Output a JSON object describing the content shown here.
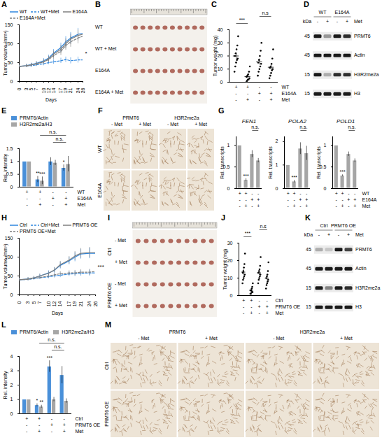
{
  "chart_data": [
    {
      "panel": "A",
      "type": "line",
      "x_label": "Days",
      "y_label": "Tumor volume (mm³)",
      "x": [
        0,
        3,
        5,
        7,
        10,
        12,
        14,
        17,
        19,
        21,
        24,
        26
      ],
      "xlim": [
        0,
        26
      ],
      "xticks": [
        0,
        3,
        5,
        7,
        10,
        12,
        14,
        17,
        19,
        21,
        24,
        26
      ],
      "ylim": [
        0,
        150
      ],
      "yticks": [
        0,
        50,
        100,
        150
      ],
      "legend": "top",
      "annotation": "*",
      "series": [
        {
          "name": "WT",
          "color": "#2e86de",
          "line_style": "solid",
          "values": [
            40,
            42,
            45,
            48,
            55,
            62,
            75,
            90,
            105,
            115,
            125,
            128
          ],
          "errors": [
            3,
            4,
            4,
            5,
            6,
            8,
            10,
            12,
            14,
            15,
            16,
            18
          ]
        },
        {
          "name": "WT+Met",
          "color": "#2e86de",
          "line_style": "dashed",
          "values": [
            40,
            41,
            42,
            44,
            47,
            50,
            52,
            55,
            58,
            55,
            57,
            57
          ],
          "errors": [
            3,
            3,
            4,
            4,
            5,
            5,
            6,
            7,
            7,
            8,
            8,
            8
          ]
        },
        {
          "name": "E164A",
          "color": "#7f7f7f",
          "line_style": "solid",
          "values": [
            40,
            42,
            44,
            47,
            52,
            60,
            72,
            85,
            100,
            112,
            122,
            125
          ],
          "errors": [
            3,
            4,
            4,
            5,
            6,
            7,
            9,
            11,
            13,
            14,
            15,
            16
          ]
        },
        {
          "name": "E164A+Met",
          "color": "#7f7f7f",
          "line_style": "dashed",
          "values": [
            40,
            41,
            44,
            47,
            52,
            58,
            68,
            80,
            95,
            105,
            115,
            120
          ],
          "errors": [
            3,
            4,
            4,
            5,
            6,
            7,
            9,
            11,
            12,
            14,
            15,
            16
          ]
        }
      ]
    },
    {
      "panel": "C",
      "type": "scatter",
      "y_label": "Tumor weight (mg)",
      "ylim": [
        0,
        40
      ],
      "yticks": [
        0,
        10,
        20,
        30,
        40
      ],
      "values": [
        [
          8,
          12,
          15,
          17,
          18,
          20,
          22,
          25,
          28,
          35
        ],
        [
          0,
          1,
          2,
          2,
          3,
          4,
          5,
          6,
          8,
          12
        ],
        [
          5,
          8,
          10,
          12,
          14,
          15,
          17,
          20,
          24,
          30
        ],
        [
          3,
          5,
          7,
          9,
          10,
          11,
          12,
          14,
          18,
          25
        ]
      ],
      "means": [
        20,
        4.3,
        15.5,
        11.4
      ],
      "errors": [
        2.5,
        1.1,
        2.3,
        2.0
      ],
      "rows": [
        {
          "label": "WT",
          "signs": [
            "+",
            "+",
            "-",
            "-"
          ]
        },
        {
          "label": "E164A",
          "signs": [
            "-",
            "-",
            "+",
            "+"
          ]
        },
        {
          "label": "Met",
          "signs": [
            "-",
            "+",
            "-",
            "+"
          ]
        }
      ],
      "annotations": [
        {
          "text": "***",
          "pair": [
            0,
            1
          ]
        },
        {
          "text": "n.s",
          "pair": [
            2,
            3
          ]
        }
      ]
    },
    {
      "panel": "E",
      "type": "bar",
      "y_label": "Rel. intensity",
      "ylim": [
        0,
        1.5
      ],
      "yticks": [
        0,
        0.5,
        1,
        1.5
      ],
      "legend": "top",
      "series": [
        {
          "name": "PRMT6/Actin",
          "color": "#4a90d9",
          "values": [
            1,
            0.3,
            1.0,
            0.75
          ],
          "errors": [
            0,
            0.12,
            0.15,
            0.12
          ],
          "significance": [
            null,
            "**",
            null,
            "*"
          ]
        },
        {
          "name": "H3R2me2a/H3",
          "color": "#a6a6a6",
          "values": [
            1,
            0.25,
            0.95,
            0.9
          ],
          "errors": [
            0,
            0.15,
            0.1,
            0.3
          ],
          "significance": [
            null,
            "***",
            null,
            null
          ]
        }
      ],
      "rows": [
        {
          "label": "WT",
          "signs": [
            "+",
            "+",
            "-",
            "-"
          ]
        },
        {
          "label": "E164A",
          "signs": [
            "-",
            "-",
            "+",
            "+"
          ]
        },
        {
          "label": "Met",
          "signs": [
            "-",
            "+",
            "-",
            "+"
          ]
        }
      ],
      "annotations": [
        {
          "text": "n.s.",
          "pair": [
            2,
            3
          ]
        },
        {
          "text": "n.s.",
          "pair": [
            1,
            3
          ]
        }
      ]
    },
    {
      "panel": "G",
      "type": "bar",
      "title": "FEN1",
      "y_label": "Rel. transcripts",
      "ylim": [
        0,
        1.2
      ],
      "yticks": [
        0,
        0.5,
        1
      ],
      "color": "#a6a6a6",
      "values": [
        1,
        0.2,
        0.8,
        0.65
      ],
      "errors": [
        0,
        0.03,
        0.08,
        0.05
      ],
      "significance": [
        null,
        "***",
        null,
        null
      ],
      "rows": [
        {
          "label": null,
          "signs": [
            "+",
            "+",
            "-",
            "-"
          ]
        },
        {
          "label": null,
          "signs": [
            "-",
            "-",
            "+",
            "+"
          ]
        },
        {
          "label": null,
          "signs": [
            "-",
            "+",
            "-",
            "+"
          ]
        }
      ],
      "annotations": [
        {
          "text": "n.s.",
          "pair": [
            2,
            3
          ]
        }
      ]
    },
    {
      "panel": "G",
      "type": "bar",
      "title": "POLA2",
      "y_label": "Rel. transcripts",
      "ylim": [
        0,
        2.2
      ],
      "yticks": [
        0,
        1,
        2
      ],
      "color": "#a6a6a6",
      "values": [
        1,
        0.3,
        1.7,
        1.5
      ],
      "errors": [
        0,
        0.05,
        0.25,
        0.3
      ],
      "significance": [
        null,
        "***",
        null,
        null
      ],
      "rows": [
        {
          "label": null,
          "signs": [
            "+",
            "+",
            "-",
            "-"
          ]
        },
        {
          "label": null,
          "signs": [
            "-",
            "-",
            "+",
            "+"
          ]
        },
        {
          "label": null,
          "signs": [
            "-",
            "+",
            "-",
            "+"
          ]
        }
      ],
      "annotations": [
        {
          "text": "n.s.",
          "pair": [
            2,
            3
          ]
        }
      ]
    },
    {
      "panel": "G",
      "type": "bar",
      "title": "POLD1",
      "y_label": "Rel. transcripts",
      "ylim": [
        0,
        1.2
      ],
      "yticks": [
        0,
        0.5,
        1
      ],
      "color": "#a6a6a6",
      "values": [
        1,
        0.3,
        0.8,
        0.65
      ],
      "errors": [
        0,
        0.02,
        0.05,
        0.04
      ],
      "significance": [
        null,
        "***",
        null,
        null
      ],
      "rows": [
        {
          "label": "WT",
          "signs": [
            "+",
            "+",
            "-",
            "-"
          ]
        },
        {
          "label": "E164A",
          "signs": [
            "-",
            "-",
            "+",
            "+"
          ]
        },
        {
          "label": "Met",
          "signs": [
            "-",
            "+",
            "-",
            "+"
          ]
        }
      ],
      "annotations": [
        {
          "text": "n.s.",
          "pair": [
            2,
            3
          ]
        }
      ]
    },
    {
      "panel": "H",
      "type": "line",
      "x_label": "Days",
      "y_label": "Tumor volume (mm³)",
      "x": [
        0,
        3,
        5,
        7,
        10,
        12,
        14,
        17,
        19,
        21,
        24,
        26
      ],
      "xlim": [
        0,
        26
      ],
      "xticks": [
        0,
        3,
        5,
        7,
        10,
        12,
        14,
        17,
        19,
        21,
        24,
        26
      ],
      "ylim": [
        0,
        150
      ],
      "yticks": [
        0,
        50,
        100,
        150
      ],
      "legend": "top",
      "annotation": "***",
      "series": [
        {
          "name": "Ctrl",
          "color": "#2e86de",
          "line_style": "solid",
          "values": [
            40,
            42,
            45,
            50,
            58,
            65,
            78,
            90,
            100,
            108,
            110,
            110
          ],
          "errors": [
            3,
            4,
            4,
            5,
            6,
            7,
            9,
            10,
            12,
            13,
            14,
            15
          ]
        },
        {
          "name": "Ctrl+Met",
          "color": "#2e86de",
          "line_style": "dashed",
          "values": [
            40,
            41,
            43,
            45,
            48,
            50,
            52,
            55,
            56,
            57,
            58,
            58
          ],
          "errors": [
            3,
            3,
            4,
            4,
            5,
            5,
            6,
            6,
            7,
            7,
            8,
            8
          ]
        },
        {
          "name": "PRMT6 OE",
          "color": "#7f7f7f",
          "line_style": "solid",
          "values": [
            40,
            42,
            45,
            50,
            57,
            66,
            80,
            92,
            103,
            110,
            112,
            112
          ],
          "errors": [
            3,
            4,
            4,
            5,
            6,
            7,
            9,
            10,
            12,
            13,
            14,
            15
          ]
        },
        {
          "name": "PRMT6 OE+Met",
          "color": "#7f7f7f",
          "line_style": "dashed",
          "values": [
            40,
            41,
            44,
            46,
            50,
            53,
            56,
            58,
            58,
            60,
            60,
            62
          ],
          "errors": [
            3,
            3,
            4,
            4,
            5,
            5,
            6,
            6,
            7,
            7,
            8,
            8
          ]
        }
      ]
    },
    {
      "panel": "J",
      "type": "scatter",
      "y_label": "Tumor weight (mg)",
      "ylim": [
        0,
        30
      ],
      "yticks": [
        0,
        10,
        20,
        30
      ],
      "values": [
        [
          7,
          9,
          10,
          11,
          12,
          13,
          14,
          16,
          18,
          24
        ],
        [
          1,
          1,
          2,
          2,
          2,
          3,
          3,
          4,
          5,
          7
        ],
        [
          7,
          9,
          10,
          11,
          12,
          13,
          14,
          15,
          17,
          22
        ],
        [
          4,
          6,
          7,
          8,
          9,
          10,
          11,
          12,
          14,
          19
        ]
      ],
      "means": [
        13.4,
        3.0,
        13.0,
        10.0
      ],
      "errors": [
        1.5,
        0.6,
        1.4,
        1.4
      ],
      "rows": [
        {
          "label": "Ctrl",
          "signs": [
            "+",
            "+",
            "-",
            "-"
          ]
        },
        {
          "label": "PRMT6 OE",
          "signs": [
            "-",
            "-",
            "+",
            "+"
          ]
        },
        {
          "label": "Met",
          "signs": [
            "-",
            "+",
            "-",
            "+"
          ]
        }
      ],
      "annotations": [
        {
          "text": "***",
          "pair": [
            0,
            1
          ]
        },
        {
          "text": "n.s",
          "pair": [
            2,
            3
          ]
        }
      ]
    },
    {
      "panel": "L",
      "type": "bar",
      "y_label": "Rel. intensity",
      "ylim": [
        0,
        4
      ],
      "yticks": [
        0,
        1,
        2,
        3,
        4
      ],
      "legend": "top",
      "series": [
        {
          "name": "PRMT6/Actin",
          "color": "#4a90d9",
          "values": [
            1,
            0.6,
            3.3,
            2.7
          ],
          "errors": [
            0,
            0.1,
            0.4,
            0.6
          ],
          "significance": [
            null,
            "*",
            "***",
            null
          ]
        },
        {
          "name": "H3R2me2a/H3",
          "color": "#a6a6a6",
          "values": [
            1,
            0.5,
            1.0,
            0.9
          ],
          "errors": [
            0,
            0.1,
            0.15,
            0.15
          ],
          "significance": [
            null,
            "**",
            null,
            null
          ]
        }
      ],
      "rows": [
        {
          "label": "Ctrl",
          "signs": [
            "+",
            "+",
            "-",
            "-"
          ]
        },
        {
          "label": "PRMT6 OE",
          "signs": [
            "-",
            "-",
            "+",
            "+"
          ]
        },
        {
          "label": "Met",
          "signs": [
            "-",
            "+",
            "-",
            "+"
          ]
        }
      ],
      "annotations": [
        {
          "text": "n.s.",
          "pair": [
            2,
            3
          ]
        },
        {
          "text": "n.s.",
          "pair": [
            1,
            3
          ]
        }
      ]
    }
  ],
  "image_panels": [
    {
      "panel": "B",
      "type": "photo",
      "row_labels": [
        "WT",
        "WT + Met",
        "E164A",
        "E164A + Met"
      ],
      "tumor_counts": [
        10,
        10,
        10,
        10
      ]
    },
    {
      "panel": "D",
      "type": "western_blot",
      "groups": [
        "WT",
        "E164A"
      ],
      "treatment": {
        "label": "Met",
        "signs": [
          "-",
          "+",
          "-",
          "+"
        ]
      },
      "unit_label": "kDa",
      "rows": [
        {
          "kda": 45,
          "label": "PRMT6",
          "intensity": [
            1,
            0.4,
            1,
            0.9
          ]
        },
        {
          "kda": 45,
          "label": "Actin",
          "intensity": [
            1,
            1,
            1,
            1
          ]
        },
        {
          "kda": 15,
          "label": "H3R2me2a",
          "intensity": [
            1,
            0.3,
            0.9,
            0.9
          ]
        },
        {
          "kda": 15,
          "label": "H3",
          "intensity": [
            1,
            1,
            1,
            1
          ]
        }
      ]
    },
    {
      "panel": "F",
      "type": "ihc",
      "columns": [
        {
          "label": "PRMT6",
          "sub": [
            "- Met",
            "+ Met"
          ]
        },
        {
          "label": "H3R2me2a",
          "sub": [
            "- Met",
            "+ Met"
          ]
        }
      ],
      "row_labels": [
        "WT",
        "E164A"
      ]
    },
    {
      "panel": "I",
      "type": "photo",
      "row_groups": [
        {
          "label": "Ctrl",
          "rows": [
            "- Met",
            "+ Met"
          ]
        },
        {
          "label": "PRMT6 OE",
          "rows": [
            "- Met",
            "+ Met"
          ]
        }
      ],
      "tumor_counts": [
        10,
        10,
        10,
        10
      ]
    },
    {
      "panel": "K",
      "type": "western_blot",
      "groups": [
        "Ctrl",
        "PRMT6 OE"
      ],
      "treatment": {
        "label": "Met",
        "signs": [
          "-",
          "+",
          "-",
          "+"
        ]
      },
      "unit_label": "kDa",
      "rows": [
        {
          "kda": 45,
          "label": "PRMT6",
          "intensity": [
            0.3,
            0.18,
            1,
            0.8
          ]
        },
        {
          "kda": 45,
          "label": "Actin",
          "intensity": [
            1,
            1,
            1,
            1
          ]
        },
        {
          "kda": 15,
          "label": "H3R2me2a",
          "intensity": [
            1,
            0.5,
            1,
            0.9
          ]
        },
        {
          "kda": 15,
          "label": "H3",
          "intensity": [
            1,
            1,
            1,
            1
          ]
        }
      ]
    },
    {
      "panel": "M",
      "type": "ihc",
      "columns": [
        {
          "label": "PRMT6",
          "sub": [
            "- Met",
            "+ Met"
          ]
        },
        {
          "label": "H3R2me2a",
          "sub": [
            "- Met",
            "+ Met"
          ]
        }
      ],
      "row_labels": [
        "Ctrl",
        "PRMT6 OE"
      ]
    }
  ]
}
